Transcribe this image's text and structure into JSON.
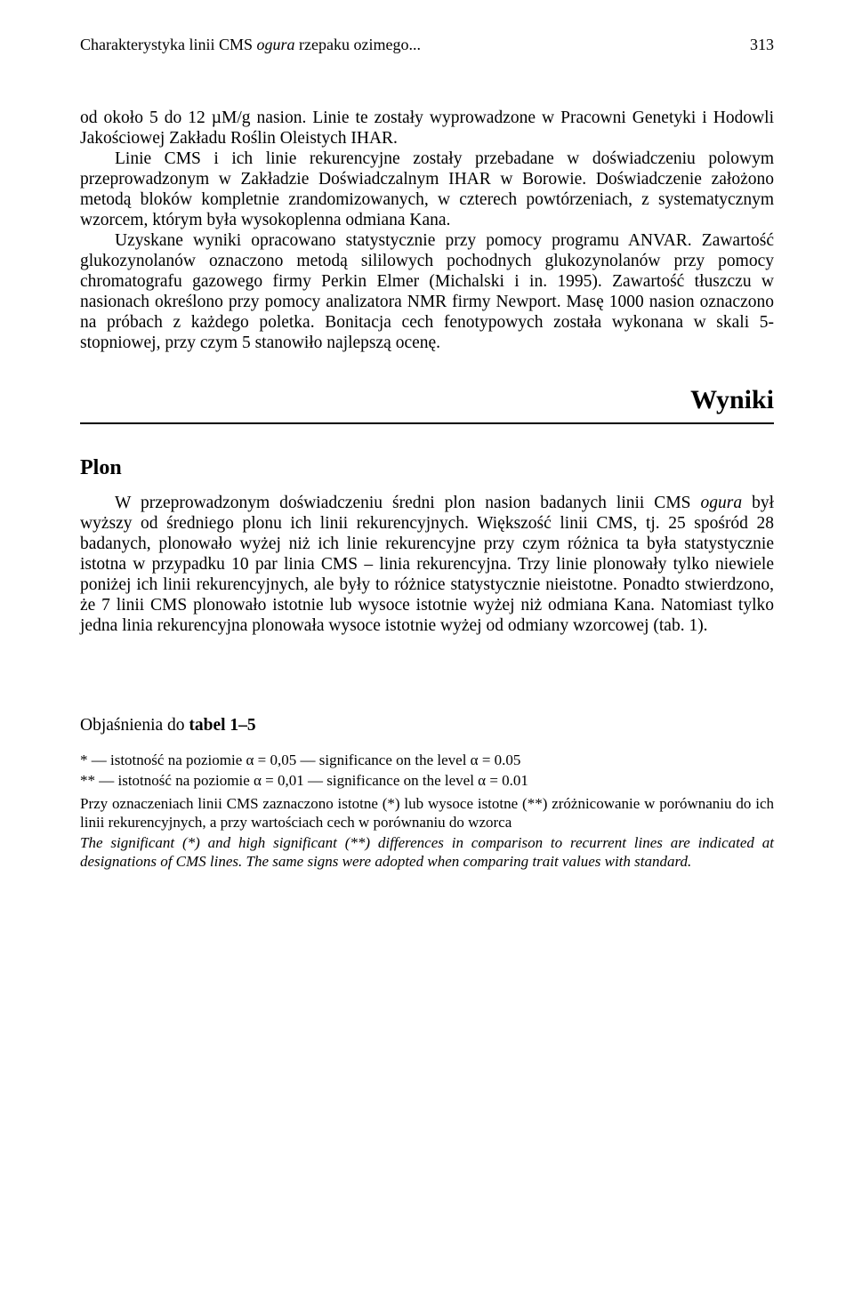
{
  "header": {
    "running_title_plain": "Charakterystyka linii CMS ",
    "running_title_italic": "ogura",
    "running_title_tail": " rzepaku ozimego...",
    "page_number": "313"
  },
  "body": {
    "p1": "od około 5 do 12 µM/g nasion. Linie te zostały wyprowadzone w Pracowni Genetyki i Hodowli Jakościowej Zakładu Roślin Oleistych IHAR.",
    "p2": "Linie CMS i ich linie rekurencyjne zostały przebadane w doświadczeniu polowym przeprowadzonym w Zakładzie Doświadczalnym IHAR w Borowie. Doświadczenie założono metodą bloków kompletnie zrandomizowanych, w czterech powtórzeniach, z systematycznym wzorcem, którym była wysokoplenna odmiana Kana.",
    "p3": "Uzyskane wyniki opracowano statystycznie przy pomocy programu ANVAR. Zawartość glukozynolanów oznaczono metodą sililowych pochodnych glukozynolanów przy pomocy chromatografu gazowego firmy Perkin Elmer (Michalski i in. 1995). Zawartość tłuszczu w nasionach określono przy pomocy analizatora NMR firmy Newport. Masę 1000 nasion oznaczono na próbach z każdego poletka. Bonitacja cech fenotypowych została wykonana w skali 5-stopniowej, przy czym 5 stanowiło najlepszą ocenę."
  },
  "results": {
    "heading": "Wyniki",
    "subheading": "Plon",
    "p1a": "W przeprowadzonym doświadczeniu średni plon nasion badanych linii CMS ",
    "p1_italic": "ogura",
    "p1b": " był wyższy od średniego plonu ich linii rekurencyjnych. Większość linii CMS, tj. 25 spośród 28 badanych, plonowało wyżej niż ich linie rekurencyjne przy czym różnica ta była statystycznie istotna w przypadku 10 par linia CMS – linia rekurencyjna. Trzy linie plonowały tylko niewiele poniżej ich linii rekurencyjnych, ale były to różnice statystycznie nieistotne. Ponadto stwierdzono, że 7 linii CMS plonowało istotnie lub wysoce istotnie wyżej niż odmiana Kana. Natomiast tylko jedna linia rekurencyjna plonowała wysoce istotnie wyżej od odmiany wzorcowej (tab. 1)."
  },
  "table_notes": {
    "heading_plain": "Objaśnienia do ",
    "heading_bold": "tabel 1–5",
    "note1": "* — istotność na poziomie α = 0,05 — significance on the level α = 0.05",
    "note2": "** — istotność na poziomie α = 0,01 — significance on the level α = 0.01",
    "note3": "Przy oznaczeniach linii CMS zaznaczono istotne (*) lub wysoce istotne (**) zróżnicowanie w porównaniu do ich linii rekurencyjnych, a przy wartościach cech w porównaniu do wzorca",
    "note4": "The significant (*) and high significant (**) differences in comparison to recurrent lines are indicated at designations of CMS lines. The same signs were adopted when comparing trait values with standard."
  }
}
